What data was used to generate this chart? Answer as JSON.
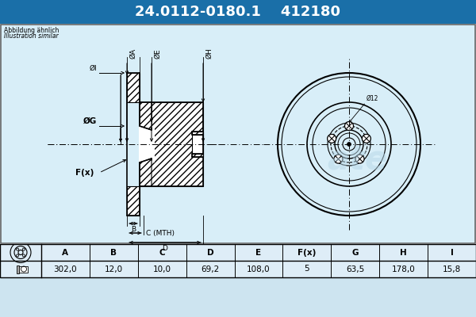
{
  "title_part_number": "24.0112-0180.1",
  "title_alt_number": "412180",
  "title_bg_color": "#1a6fa8",
  "title_text_color": "#ffffff",
  "subtitle_line1": "Abbildung ähnlich",
  "subtitle_line2": "Illustration similar",
  "table_headers": [
    "A",
    "B",
    "C",
    "D",
    "E",
    "F(x)",
    "G",
    "H",
    "I"
  ],
  "table_values": [
    "302,0",
    "12,0",
    "10,0",
    "69,2",
    "108,0",
    "5",
    "63,5",
    "178,0",
    "15,8"
  ],
  "bg_color": "#cde4f0",
  "diagram_bg": "#d8eef8",
  "line_color": "#000000",
  "dim_label_A": "ØA",
  "dim_label_H": "ØH",
  "dim_label_E": "ØE",
  "dim_label_G": "ØG",
  "dim_label_I": "ØI",
  "dim_label_B": "B",
  "dim_label_C": "C (MTH)",
  "dim_label_D": "D",
  "dim_label_F": "F(x)",
  "dim_label_12": "Ø12"
}
